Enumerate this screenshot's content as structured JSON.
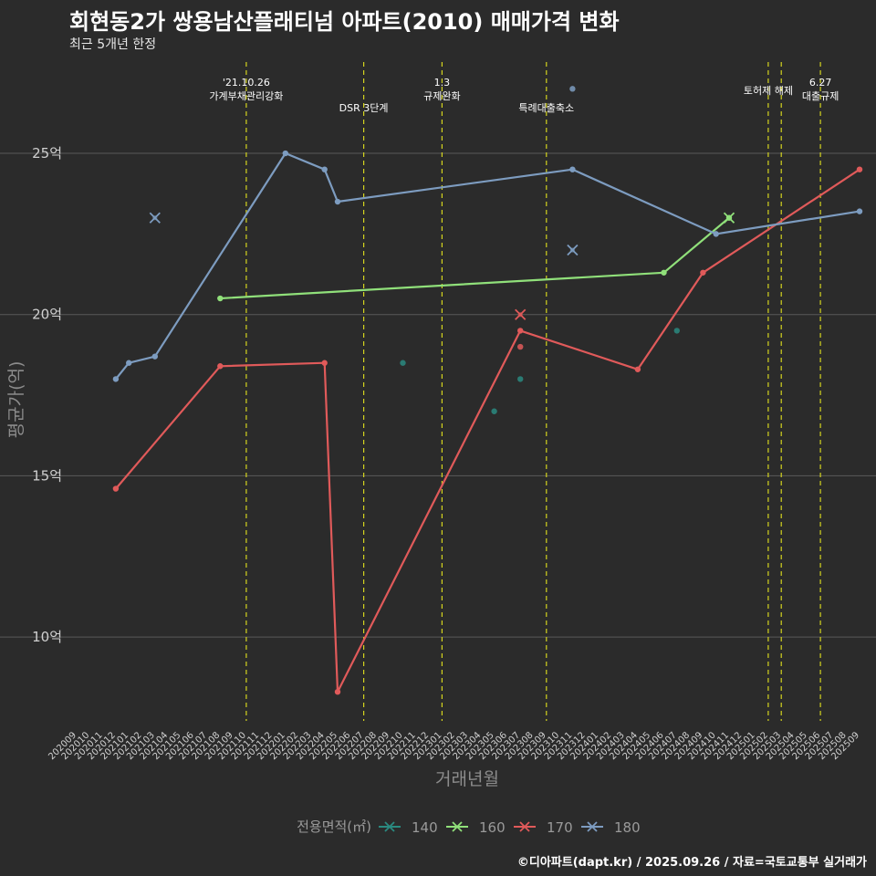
{
  "header": {
    "title": "회현동2가 쌍용남산플래티넘 아파트(2010) 매매가격 변화",
    "subtitle": "최근 5개년 한정"
  },
  "footer": {
    "caption": "©디아파트(dapt.kr) / 2025.09.26 / 자료=국토교통부 실거래가"
  },
  "colors": {
    "background": "#2b2b2b",
    "grid": "#5a5a5a",
    "vline": "#d4d41e",
    "s140": "#2a8a80",
    "s160": "#90e07a",
    "s170": "#e05a5a",
    "s180": "#7d9cc0"
  },
  "chart_data": {
    "type": "line",
    "title": "회현동2가 쌍용남산플래티넘 아파트(2010) 매매가격 변화",
    "xlabel": "거래년월",
    "ylabel": "평균가(억)",
    "ylim": [
      7.4,
      28
    ],
    "yticks": [
      10,
      15,
      20,
      25
    ],
    "ytick_labels": [
      "10억",
      "15억",
      "20억",
      "25억"
    ],
    "grid": true,
    "x_categories": [
      "202009",
      "202010",
      "202011",
      "202012",
      "202101",
      "202102",
      "202103",
      "202104",
      "202105",
      "202106",
      "202107",
      "202108",
      "202109",
      "202110",
      "202111",
      "202112",
      "202201",
      "202202",
      "202203",
      "202204",
      "202205",
      "202206",
      "202207",
      "202208",
      "202209",
      "202210",
      "202211",
      "202212",
      "202301",
      "202302",
      "202303",
      "202304",
      "202305",
      "202306",
      "202307",
      "202308",
      "202309",
      "202310",
      "202311",
      "202312",
      "202401",
      "202402",
      "202403",
      "202404",
      "202405",
      "202406",
      "202407",
      "202408",
      "202409",
      "202410",
      "202411",
      "202412",
      "202501",
      "202502",
      "202503",
      "202504",
      "202505",
      "202506",
      "202507",
      "202508",
      "202509"
    ],
    "legend": {
      "title": "전용면적(㎡)",
      "position": "bottom",
      "entries": [
        "140",
        "160",
        "170",
        "180"
      ]
    },
    "series": [
      {
        "name": "140",
        "color_key": "s140",
        "line": [],
        "points": [
          {
            "x": "202210",
            "y": 18.5
          },
          {
            "x": "202305",
            "y": 17.0
          },
          {
            "x": "202307",
            "y": 18.0
          },
          {
            "x": "202407",
            "y": 19.5
          }
        ],
        "crosses": []
      },
      {
        "name": "160",
        "color_key": "s160",
        "line": [
          {
            "x": "202108",
            "y": 20.5
          },
          {
            "x": "202406",
            "y": 21.3
          },
          {
            "x": "202411",
            "y": 23.0
          }
        ],
        "points": [],
        "crosses": [
          {
            "x": "202411",
            "y": 23.0
          }
        ]
      },
      {
        "name": "170",
        "color_key": "s170",
        "line": [
          {
            "x": "202012",
            "y": 14.6
          },
          {
            "x": "202108",
            "y": 18.4
          },
          {
            "x": "202204",
            "y": 18.5
          },
          {
            "x": "202205",
            "y": 8.3
          },
          {
            "x": "202307",
            "y": 19.5
          },
          {
            "x": "202404",
            "y": 18.3
          },
          {
            "x": "202409",
            "y": 21.3
          },
          {
            "x": "202509",
            "y": 24.5
          }
        ],
        "points": [
          {
            "x": "202307",
            "y": 19.0
          }
        ],
        "crosses": [
          {
            "x": "202307",
            "y": 20.0
          }
        ]
      },
      {
        "name": "180",
        "color_key": "s180",
        "line": [
          {
            "x": "202012",
            "y": 18.0
          },
          {
            "x": "202101",
            "y": 18.5
          },
          {
            "x": "202103",
            "y": 18.7
          },
          {
            "x": "202201",
            "y": 25.0
          },
          {
            "x": "202204",
            "y": 24.5
          },
          {
            "x": "202205",
            "y": 23.5
          },
          {
            "x": "202311",
            "y": 24.5
          },
          {
            "x": "202410",
            "y": 22.5
          },
          {
            "x": "202509",
            "y": 23.2
          }
        ],
        "points": [
          {
            "x": "202311",
            "y": 27.0
          }
        ],
        "crosses": [
          {
            "x": "202103",
            "y": 23.0
          },
          {
            "x": "202311",
            "y": 22.0
          }
        ]
      }
    ],
    "annotations": [
      {
        "id": "a1",
        "x": "202110",
        "lines": [
          "'21.10.26",
          "가계부채관리강화"
        ],
        "level": "upper"
      },
      {
        "id": "a2",
        "x": "202207",
        "lines": [
          "DSR 3단계"
        ],
        "level": "lower"
      },
      {
        "id": "a3",
        "x": "202301",
        "lines": [
          "1.3",
          "규제완화"
        ],
        "level": "upper"
      },
      {
        "id": "a4",
        "x": "202309",
        "lines": [
          "특례대출축소"
        ],
        "level": "lower"
      },
      {
        "id": "a5",
        "x": "202502",
        "lines": [
          "토허제 해제"
        ],
        "level": "upper"
      },
      {
        "id": "a6",
        "x": "202503",
        "lines": [],
        "level": "upper"
      },
      {
        "id": "a7",
        "x": "202506",
        "lines": [
          "6.27",
          "대출규제"
        ],
        "level": "upper"
      }
    ]
  }
}
